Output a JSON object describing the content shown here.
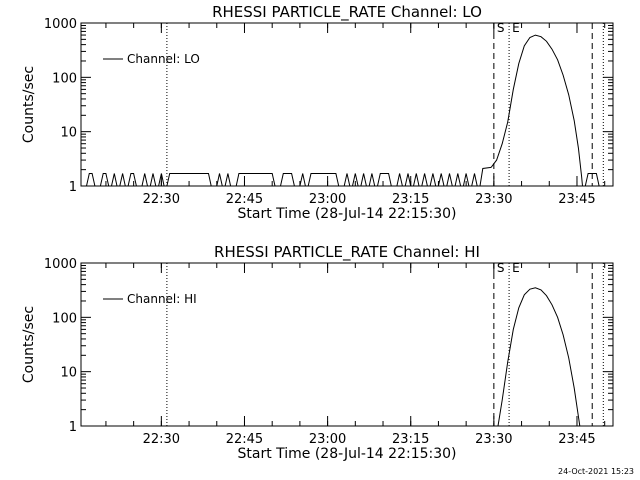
{
  "footer_timestamp": "24-Oct-2021 15:23",
  "chart_data": [
    {
      "type": "line",
      "title": "RHESSI PARTICLE_RATE Channel: LO",
      "xlabel": "Start Time (28-Jul-14 22:15:30)",
      "ylabel": "Counts/sec",
      "yscale": "log",
      "ylim": [
        1,
        1000
      ],
      "xlim": [
        "22:15:30",
        "23:51:30"
      ],
      "xticks": [
        "22:30",
        "22:45",
        "23:00",
        "23:15",
        "23:30",
        "23:45"
      ],
      "yticks": [
        "1",
        "10",
        "100",
        "1000"
      ],
      "grid": false,
      "legend": "top-left",
      "markers": {
        "dotted": [
          "22:31:00",
          "23:32:45",
          "23:49:45"
        ],
        "dashed": [
          "23:30:00",
          "23:47:45"
        ],
        "labels": [
          {
            "text": "S",
            "time": "23:30:00"
          },
          {
            "text": "E",
            "time": "23:32:45"
          }
        ]
      },
      "series": [
        {
          "name": "Channel: LO",
          "flat": [
            [
              "22:15:30",
              1
            ],
            [
              "22:16:30",
              1
            ],
            [
              "22:17:00",
              1.7
            ],
            [
              "22:17:30",
              1.7
            ],
            [
              "22:18:00",
              1
            ],
            [
              "22:19:00",
              1
            ],
            [
              "22:19:30",
              1.7
            ],
            [
              "22:20:00",
              1.7
            ],
            [
              "22:20:30",
              1
            ],
            [
              "22:21:00",
              1
            ],
            [
              "22:21:30",
              1.7
            ],
            [
              "22:22:00",
              1
            ],
            [
              "22:22:30",
              1
            ],
            [
              "22:23:00",
              1.7
            ],
            [
              "22:23:30",
              1
            ],
            [
              "22:24:00",
              1
            ],
            [
              "22:24:30",
              1.7
            ],
            [
              "22:25:00",
              1.7
            ],
            [
              "22:25:30",
              1
            ],
            [
              "22:26:30",
              1
            ],
            [
              "22:27:00",
              1.7
            ],
            [
              "22:27:30",
              1
            ],
            [
              "22:28:00",
              1
            ],
            [
              "22:28:30",
              1.7
            ],
            [
              "22:29:00",
              1
            ],
            [
              "22:29:30",
              1
            ],
            [
              "22:30:00",
              1.7
            ],
            [
              "22:30:30",
              1
            ],
            [
              "22:31:00",
              1
            ],
            [
              "22:31:30",
              1.7
            ],
            [
              "22:38:30",
              1.7
            ],
            [
              "22:39:00",
              1
            ],
            [
              "22:40:00",
              1
            ],
            [
              "22:40:30",
              1.7
            ],
            [
              "22:41:00",
              1
            ],
            [
              "22:41:30",
              1
            ],
            [
              "22:42:00",
              1.7
            ],
            [
              "22:42:30",
              1
            ],
            [
              "22:43:30",
              1
            ],
            [
              "22:44:00",
              1.7
            ],
            [
              "22:50:00",
              1.7
            ],
            [
              "22:50:30",
              1
            ],
            [
              "22:51:30",
              1
            ],
            [
              "22:52:00",
              1.7
            ],
            [
              "22:53:30",
              1.7
            ],
            [
              "22:54:00",
              1
            ],
            [
              "22:55:00",
              1
            ],
            [
              "22:55:30",
              1.7
            ],
            [
              "22:56:00",
              1
            ],
            [
              "22:56:30",
              1
            ],
            [
              "22:57:00",
              1.7
            ],
            [
              "23:01:30",
              1.7
            ],
            [
              "23:02:00",
              1
            ],
            [
              "23:03:00",
              1
            ],
            [
              "23:03:30",
              1.7
            ],
            [
              "23:04:00",
              1
            ],
            [
              "23:04:30",
              1
            ],
            [
              "23:05:00",
              1.7
            ],
            [
              "23:05:30",
              1
            ],
            [
              "23:06:00",
              1
            ],
            [
              "23:06:30",
              1.7
            ],
            [
              "23:07:00",
              1
            ],
            [
              "23:07:30",
              1
            ],
            [
              "23:08:00",
              1.7
            ],
            [
              "23:08:30",
              1
            ],
            [
              "23:09:00",
              1
            ],
            [
              "23:09:30",
              1.7
            ],
            [
              "23:11:00",
              1.7
            ],
            [
              "23:11:30",
              1
            ],
            [
              "23:12:30",
              1
            ],
            [
              "23:13:00",
              1.7
            ],
            [
              "23:13:30",
              1
            ],
            [
              "23:14:00",
              1
            ],
            [
              "23:14:30",
              1.7
            ],
            [
              "23:15:00",
              1
            ],
            [
              "23:15:30",
              1
            ],
            [
              "23:16:00",
              1.7
            ],
            [
              "23:16:30",
              1
            ],
            [
              "23:17:00",
              1
            ],
            [
              "23:17:30",
              1.7
            ],
            [
              "23:18:00",
              1
            ],
            [
              "23:18:30",
              1
            ],
            [
              "23:19:00",
              1.7
            ],
            [
              "23:19:30",
              1
            ],
            [
              "23:20:00",
              1
            ],
            [
              "23:20:30",
              1.7
            ],
            [
              "23:21:00",
              1
            ],
            [
              "23:21:30",
              1
            ],
            [
              "23:22:00",
              1.7
            ],
            [
              "23:22:30",
              1
            ],
            [
              "23:23:00",
              1
            ],
            [
              "23:23:30",
              1.7
            ],
            [
              "23:24:00",
              1
            ],
            [
              "23:24:30",
              1
            ],
            [
              "23:25:00",
              1.7
            ],
            [
              "23:25:30",
              1
            ],
            [
              "23:26:00",
              1
            ],
            [
              "23:26:30",
              1.7
            ],
            [
              "23:27:00",
              1
            ],
            [
              "23:27:30",
              1
            ],
            [
              "23:28:00",
              2.1
            ],
            [
              "23:29:30",
              2.2
            ]
          ],
          "peak": [
            [
              "23:29:30",
              2.2
            ],
            [
              "23:30:30",
              3
            ],
            [
              "23:31:30",
              6
            ],
            [
              "23:32:30",
              15
            ],
            [
              "23:33:30",
              60
            ],
            [
              "23:34:30",
              180
            ],
            [
              "23:35:30",
              380
            ],
            [
              "23:36:30",
              540
            ],
            [
              "23:37:30",
              600
            ],
            [
              "23:38:30",
              560
            ],
            [
              "23:39:30",
              460
            ],
            [
              "23:40:30",
              330
            ],
            [
              "23:41:30",
              210
            ],
            [
              "23:42:30",
              110
            ],
            [
              "23:43:30",
              48
            ],
            [
              "23:44:30",
              16
            ],
            [
              "23:45:15",
              5
            ],
            [
              "23:45:50",
              1.5
            ],
            [
              "23:46:00",
              1
            ]
          ],
          "tail": [
            [
              "23:46:30",
              1
            ],
            [
              "23:47:00",
              1.7
            ],
            [
              "23:48:30",
              1.7
            ],
            [
              "23:49:00",
              1
            ]
          ]
        }
      ]
    },
    {
      "type": "line",
      "title": "RHESSI PARTICLE_RATE Channel: HI",
      "xlabel": "Start Time (28-Jul-14 22:15:30)",
      "ylabel": "Counts/sec",
      "yscale": "log",
      "ylim": [
        1,
        1000
      ],
      "xlim": [
        "22:15:30",
        "23:51:30"
      ],
      "xticks": [
        "22:30",
        "22:45",
        "23:00",
        "23:15",
        "23:30",
        "23:45"
      ],
      "yticks": [
        "1",
        "10",
        "100",
        "1000"
      ],
      "grid": false,
      "legend": "top-left",
      "markers": {
        "dotted": [
          "22:31:00",
          "23:32:45",
          "23:49:45"
        ],
        "dashed": [
          "23:30:00",
          "23:47:45"
        ],
        "labels": [
          {
            "text": "S",
            "time": "23:30:00"
          },
          {
            "text": "E",
            "time": "23:32:45"
          }
        ]
      },
      "series": [
        {
          "name": "Channel: HI",
          "peak": [
            [
              "23:30:45",
              1
            ],
            [
              "23:31:30",
              3
            ],
            [
              "23:32:30",
              15
            ],
            [
              "23:33:30",
              60
            ],
            [
              "23:34:30",
              150
            ],
            [
              "23:35:30",
              260
            ],
            [
              "23:36:30",
              330
            ],
            [
              "23:37:30",
              350
            ],
            [
              "23:38:30",
              320
            ],
            [
              "23:39:30",
              250
            ],
            [
              "23:40:30",
              170
            ],
            [
              "23:41:30",
              100
            ],
            [
              "23:42:30",
              48
            ],
            [
              "23:43:30",
              18
            ],
            [
              "23:44:30",
              5
            ],
            [
              "23:45:15",
              1.5
            ],
            [
              "23:45:30",
              1
            ]
          ]
        }
      ]
    }
  ]
}
